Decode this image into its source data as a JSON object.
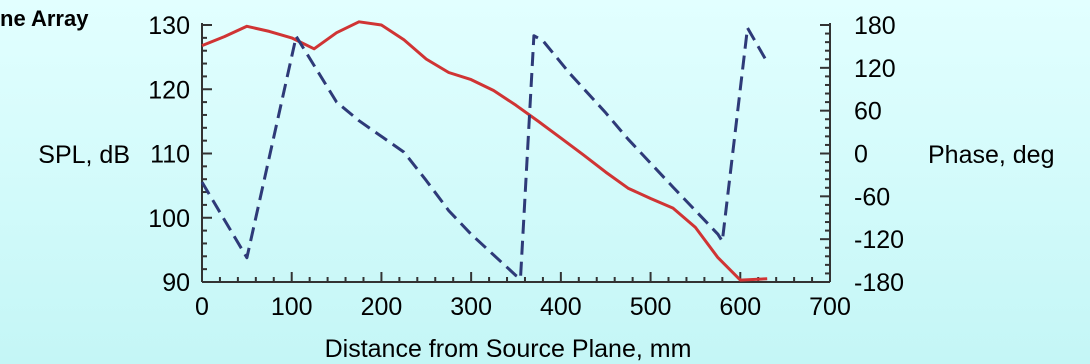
{
  "chart_data": {
    "type": "line",
    "title": "ne Array",
    "xlabel": "Distance from Source Plane, mm",
    "ylabel_left": "SPL, dB",
    "ylabel_right": "Phase, deg",
    "xlim": [
      0,
      700
    ],
    "ylim_left": [
      90,
      130
    ],
    "ylim_right": [
      -180,
      180
    ],
    "x_ticks": [
      "0",
      "100",
      "200",
      "300",
      "400",
      "500",
      "600",
      "700"
    ],
    "y_left_ticks": [
      "90",
      "100",
      "110",
      "120",
      "130"
    ],
    "y_right_ticks": [
      "-180",
      "-120",
      "-60",
      "0",
      "60",
      "120",
      "180"
    ],
    "grid": false,
    "series": [
      {
        "axis": "left",
        "style": "solid",
        "color": "#d03434",
        "points": [
          [
            0,
            126.8
          ],
          [
            25,
            128.2
          ],
          [
            50,
            129.8
          ],
          [
            75,
            129.0
          ],
          [
            100,
            128.0
          ],
          [
            125,
            126.3
          ],
          [
            150,
            128.8
          ],
          [
            175,
            130.5
          ],
          [
            200,
            130.0
          ],
          [
            225,
            127.7
          ],
          [
            250,
            124.7
          ],
          [
            275,
            122.6
          ],
          [
            300,
            121.5
          ],
          [
            325,
            119.8
          ],
          [
            350,
            117.5
          ],
          [
            375,
            115.0
          ],
          [
            400,
            112.4
          ],
          [
            425,
            109.8
          ],
          [
            450,
            107.1
          ],
          [
            475,
            104.6
          ],
          [
            500,
            103.0
          ],
          [
            525,
            101.5
          ],
          [
            550,
            98.5
          ],
          [
            575,
            93.8
          ],
          [
            600,
            90.3
          ],
          [
            630,
            90.5
          ]
        ]
      },
      {
        "axis": "right",
        "style": "dashed",
        "color": "#2e3a78",
        "points": [
          [
            0,
            -40
          ],
          [
            50,
            -146
          ],
          [
            105,
            164
          ],
          [
            150,
            72
          ],
          [
            175,
            46
          ],
          [
            225,
            2
          ],
          [
            250,
            -38
          ],
          [
            275,
            -80
          ],
          [
            300,
            -113
          ],
          [
            350,
            -171
          ],
          [
            355,
            -175
          ],
          [
            370,
            165
          ],
          [
            380,
            158
          ],
          [
            410,
            112
          ],
          [
            450,
            57
          ],
          [
            475,
            20
          ],
          [
            525,
            -47
          ],
          [
            575,
            -113
          ],
          [
            580,
            -123
          ],
          [
            608,
            176
          ],
          [
            630,
            128
          ]
        ]
      }
    ]
  }
}
